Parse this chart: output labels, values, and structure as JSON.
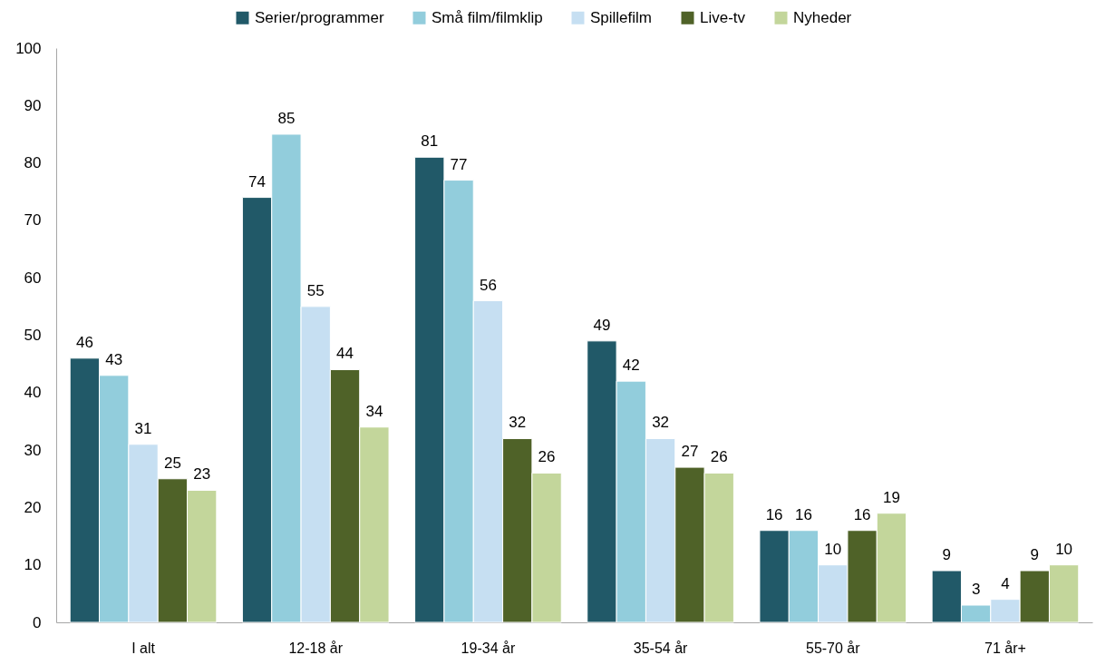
{
  "chart_data": {
    "type": "bar",
    "categories": [
      "I alt",
      "12-18 år",
      "19-34 år",
      "35-54 år",
      "55-70 år",
      "71 år+"
    ],
    "series": [
      {
        "name": "Serier/programmer",
        "color": "#215968",
        "values": [
          46,
          74,
          81,
          49,
          16,
          9
        ]
      },
      {
        "name": "Små film/filmklip",
        "color": "#92cddc",
        "values": [
          43,
          85,
          77,
          42,
          16,
          3
        ]
      },
      {
        "name": "Spillefilm",
        "color": "#c6dff2",
        "values": [
          31,
          55,
          56,
          32,
          10,
          4
        ]
      },
      {
        "name": "Live-tv",
        "color": "#4f6228",
        "values": [
          25,
          44,
          32,
          27,
          16,
          9
        ]
      },
      {
        "name": "Nyheder",
        "color": "#c3d69b",
        "values": [
          23,
          34,
          26,
          26,
          19,
          10
        ]
      }
    ],
    "ylim": [
      0,
      100
    ],
    "yticks": [
      0,
      10,
      20,
      30,
      40,
      50,
      60,
      70,
      80,
      90,
      100
    ],
    "data_labels": true,
    "legend": "top"
  }
}
